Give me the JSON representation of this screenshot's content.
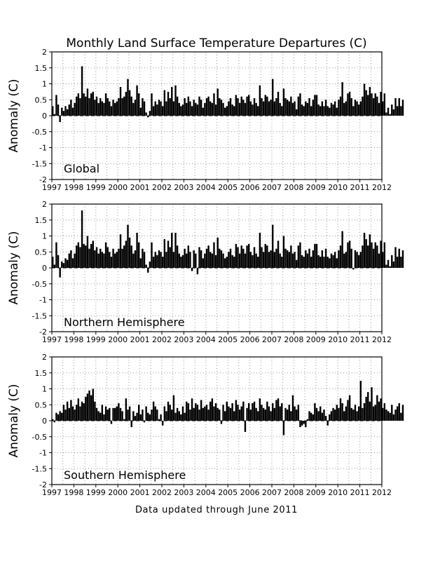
{
  "title": "Monthly Land Surface Temperature Departures (C)",
  "footer": "Data updated through June 2011",
  "chart_data": [
    {
      "type": "bar",
      "panel": "Global",
      "xlabel": "",
      "ylabel": "Anomaly (C)",
      "xlim": [
        1997,
        2012
      ],
      "ylim": [
        -2,
        2
      ],
      "grid": true,
      "x_ticks": [
        "1997",
        "1998",
        "1999",
        "2000",
        "2001",
        "2002",
        "2003",
        "2004",
        "2005",
        "2006",
        "2007",
        "2008",
        "2009",
        "2010",
        "2011",
        "2012"
      ],
      "y_ticks": [
        "2",
        "1.5",
        "1",
        "0.5",
        "0",
        "-0.5",
        "-1",
        "-1.5",
        "-2"
      ],
      "start": "1997-01",
      "values": [
        0.3,
        0.05,
        0.65,
        0.35,
        -0.2,
        0.25,
        0.15,
        0.3,
        0.2,
        0.35,
        0.5,
        0.25,
        0.4,
        0.6,
        0.7,
        0.55,
        1.55,
        0.7,
        0.6,
        0.85,
        0.55,
        0.7,
        0.75,
        0.5,
        0.6,
        0.4,
        0.55,
        0.45,
        0.4,
        0.7,
        0.55,
        0.45,
        0.3,
        0.5,
        0.4,
        0.45,
        0.55,
        0.9,
        0.55,
        0.6,
        0.75,
        1.15,
        0.8,
        0.6,
        0.4,
        0.5,
        0.95,
        0.7,
        0.25,
        0.55,
        0.45,
        0.1,
        -0.05,
        0.15,
        0.7,
        0.3,
        0.45,
        0.35,
        0.5,
        0.45,
        0.3,
        0.8,
        0.45,
        0.75,
        0.55,
        0.9,
        0.45,
        0.95,
        0.6,
        0.4,
        0.3,
        0.35,
        0.55,
        0.4,
        0.6,
        0.45,
        0.3,
        0.5,
        0.4,
        0.35,
        0.6,
        0.5,
        0.25,
        0.4,
        0.55,
        0.6,
        0.45,
        0.4,
        0.7,
        0.35,
        0.85,
        0.55,
        0.5,
        0.4,
        0.25,
        0.3,
        0.45,
        0.55,
        0.35,
        0.3,
        0.65,
        0.55,
        0.4,
        0.6,
        0.5,
        0.4,
        0.6,
        0.65,
        0.45,
        0.35,
        0.55,
        0.4,
        0.3,
        0.95,
        0.55,
        0.45,
        0.65,
        0.6,
        0.45,
        0.5,
        1.15,
        0.45,
        0.55,
        0.75,
        0.4,
        0.3,
        0.85,
        0.55,
        0.5,
        0.45,
        0.6,
        0.4,
        0.45,
        0.2,
        0.6,
        0.7,
        0.35,
        0.3,
        0.45,
        0.4,
        0.55,
        0.3,
        0.5,
        0.65,
        0.65,
        0.35,
        0.3,
        0.45,
        0.3,
        0.5,
        0.3,
        0.25,
        0.4,
        0.35,
        0.45,
        0.25,
        0.5,
        0.6,
        1.05,
        0.4,
        0.45,
        0.7,
        0.75,
        0.55,
        0.3,
        0.5,
        0.45,
        0.35,
        0.45,
        0.6,
        1.0,
        0.8,
        0.65,
        0.9,
        0.7,
        0.55,
        0.7,
        0.6,
        0.4,
        0.75,
        0.45,
        0.7,
        0.1,
        0.25,
        0.05,
        0.35,
        0.2,
        0.55,
        0.3,
        0.55,
        0.3,
        0.5
      ]
    },
    {
      "type": "bar",
      "panel": "Northern Hemisphere",
      "xlabel": "",
      "ylabel": "Anomaly (C)",
      "xlim": [
        1997,
        2012
      ],
      "ylim": [
        -2,
        2
      ],
      "grid": true,
      "x_ticks": [
        "1997",
        "1998",
        "1999",
        "2000",
        "2001",
        "2002",
        "2003",
        "2004",
        "2005",
        "2006",
        "2007",
        "2008",
        "2009",
        "2010",
        "2011",
        "2012"
      ],
      "y_ticks": [
        "2",
        "1.5",
        "1",
        "0.5",
        "0",
        "-0.5",
        "-1",
        "-1.5",
        "-2"
      ],
      "start": "1997-01",
      "values": [
        0.35,
        0.1,
        0.8,
        0.4,
        -0.3,
        0.2,
        0.15,
        0.3,
        0.25,
        0.45,
        0.55,
        0.3,
        0.45,
        0.7,
        0.8,
        0.65,
        1.8,
        0.75,
        0.7,
        1.0,
        0.6,
        0.75,
        0.85,
        0.55,
        0.65,
        0.45,
        0.6,
        0.5,
        0.45,
        0.8,
        0.65,
        0.5,
        0.35,
        0.6,
        0.45,
        0.5,
        0.6,
        1.05,
        0.6,
        0.7,
        0.85,
        1.35,
        0.95,
        0.7,
        0.45,
        0.55,
        1.1,
        0.8,
        0.3,
        0.6,
        0.5,
        0.1,
        -0.15,
        0.2,
        0.8,
        0.35,
        0.5,
        0.4,
        0.55,
        0.5,
        0.35,
        0.9,
        0.5,
        0.85,
        0.65,
        1.1,
        0.5,
        1.1,
        0.7,
        0.45,
        0.35,
        0.4,
        0.6,
        0.45,
        0.7,
        0.5,
        -0.1,
        0.55,
        0.45,
        -0.2,
        0.65,
        0.55,
        0.3,
        0.45,
        0.6,
        0.7,
        0.5,
        0.45,
        0.8,
        0.4,
        0.95,
        0.6,
        0.55,
        0.45,
        0.3,
        0.35,
        0.5,
        0.6,
        0.4,
        0.35,
        0.75,
        0.65,
        0.45,
        0.7,
        0.6,
        0.45,
        0.7,
        0.75,
        0.5,
        0.4,
        0.65,
        0.45,
        0.35,
        1.1,
        0.65,
        0.5,
        0.75,
        0.7,
        0.5,
        0.55,
        1.35,
        0.5,
        0.6,
        0.85,
        0.45,
        0.35,
        1.0,
        0.6,
        0.55,
        0.5,
        0.7,
        0.45,
        0.5,
        0.25,
        0.7,
        0.8,
        0.4,
        0.35,
        0.55,
        0.45,
        0.6,
        0.35,
        0.55,
        0.75,
        0.75,
        0.4,
        0.35,
        0.55,
        0.35,
        0.6,
        0.35,
        0.3,
        0.45,
        0.4,
        0.5,
        0.3,
        0.55,
        0.7,
        1.15,
        0.45,
        0.5,
        0.8,
        0.85,
        0.6,
        -0.05,
        0.55,
        0.5,
        0.4,
        0.5,
        0.7,
        1.1,
        0.9,
        0.7,
        1.05,
        0.8,
        0.6,
        0.8,
        0.7,
        0.45,
        0.85,
        0.5,
        0.8,
        0.1,
        0.25,
        0.05,
        0.4,
        0.2,
        0.65,
        0.35,
        0.6,
        0.35,
        0.55
      ]
    },
    {
      "type": "bar",
      "panel": "Southern Hemisphere",
      "xlabel": "",
      "ylabel": "Anomaly (C)",
      "xlim": [
        1997,
        2012
      ],
      "ylim": [
        -2,
        2
      ],
      "grid": true,
      "x_ticks": [
        "1997",
        "1998",
        "1999",
        "2000",
        "2001",
        "2002",
        "2003",
        "2004",
        "2005",
        "2006",
        "2007",
        "2008",
        "2009",
        "2010",
        "2011",
        "2012"
      ],
      "y_ticks": [
        "2",
        "1.5",
        "1",
        "0.5",
        "0",
        "-0.5",
        "-1",
        "-1.5",
        "-2"
      ],
      "start": "1997-01",
      "values": [
        0.05,
        -0.05,
        0.25,
        0.2,
        0.3,
        0.25,
        0.5,
        0.35,
        0.6,
        0.4,
        0.65,
        0.45,
        0.35,
        0.5,
        0.7,
        0.45,
        0.6,
        0.55,
        0.75,
        0.85,
        0.95,
        0.8,
        1.0,
        0.6,
        0.4,
        0.3,
        0.25,
        0.5,
        0.2,
        0.45,
        0.35,
        0.4,
        -0.1,
        0.4,
        0.4,
        0.45,
        0.55,
        0.4,
        0.3,
        0.05,
        0.7,
        0.35,
        0.45,
        -0.2,
        0.3,
        0.15,
        0.25,
        0.5,
        0.2,
        0.35,
        -0.05,
        0.45,
        0.25,
        0.2,
        0.35,
        0.6,
        0.45,
        0.35,
        0.05,
        0.2,
        -0.15,
        0.45,
        0.3,
        0.6,
        0.5,
        0.35,
        0.8,
        0.25,
        0.4,
        0.3,
        0.2,
        0.45,
        0.25,
        0.6,
        0.55,
        0.35,
        0.7,
        0.4,
        0.55,
        0.5,
        0.35,
        0.65,
        0.4,
        0.45,
        0.5,
        0.35,
        0.6,
        0.7,
        0.45,
        0.55,
        0.4,
        0.35,
        -0.1,
        0.5,
        0.3,
        0.6,
        0.45,
        0.4,
        0.55,
        0.3,
        0.65,
        0.5,
        0.35,
        0.45,
        0.6,
        -0.35,
        0.4,
        0.55,
        0.35,
        0.55,
        0.6,
        0.4,
        0.3,
        0.7,
        0.5,
        0.4,
        0.35,
        0.6,
        0.45,
        0.3,
        0.55,
        0.4,
        0.65,
        0.7,
        0.45,
        0.55,
        -0.45,
        0.4,
        0.35,
        0.5,
        0.3,
        0.8,
        0.45,
        0.35,
        0.5,
        -0.2,
        -0.15,
        -0.1,
        -0.2,
        0.05,
        0.3,
        0.25,
        0.2,
        0.55,
        0.4,
        0.3,
        0.45,
        0.25,
        0.35,
        0.15,
        -0.15,
        0.2,
        0.3,
        0.4,
        0.35,
        0.5,
        0.4,
        0.7,
        0.55,
        0.3,
        0.45,
        0.65,
        0.8,
        0.4,
        0.35,
        0.5,
        0.3,
        0.45,
        1.25,
        0.4,
        0.55,
        0.75,
        0.9,
        0.6,
        1.05,
        0.45,
        0.5,
        0.8,
        0.6,
        0.7,
        0.4,
        0.55,
        0.35,
        0.3,
        0.25,
        0.5,
        0.2,
        0.35,
        0.45,
        0.55,
        0.25,
        0.5
      ]
    }
  ]
}
